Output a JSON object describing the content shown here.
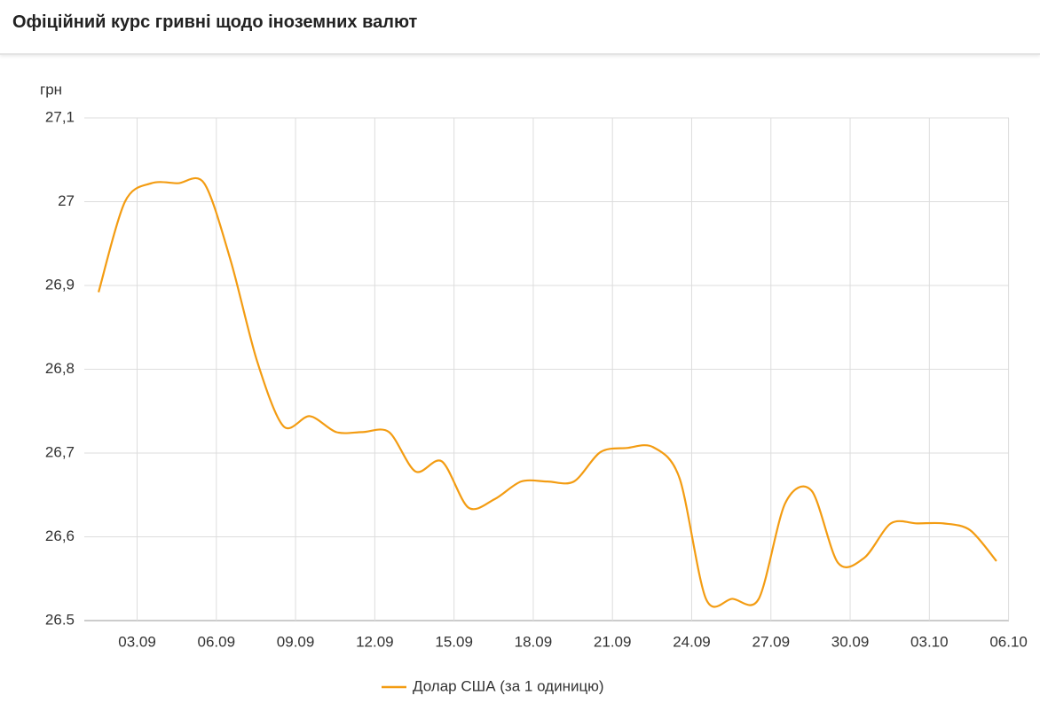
{
  "header": {
    "title": "Офіційний курс гривні щодо іноземних валют"
  },
  "chart_data": {
    "type": "line",
    "y_label": "грн",
    "xticks": [
      "03.09",
      "06.09",
      "09.09",
      "12.09",
      "15.09",
      "18.09",
      "21.09",
      "24.09",
      "27.09",
      "30.09",
      "03.10",
      "06.10"
    ],
    "series": [
      {
        "name": "Долар США (за 1 одиницю)",
        "color": "#f39c12",
        "values": [
          26.892,
          27.0,
          27.022,
          27.022,
          27.022,
          26.93,
          26.81,
          26.732,
          26.744,
          26.725,
          26.725,
          26.725,
          26.678,
          26.69,
          26.635,
          26.645,
          26.666,
          26.666,
          26.666,
          26.701,
          26.706,
          26.707,
          26.67,
          26.526,
          26.526,
          26.526,
          26.64,
          26.655,
          26.569,
          26.575,
          26.616,
          26.616,
          26.616,
          26.608,
          26.571
        ]
      }
    ],
    "ylim": [
      26.5,
      27.1
    ],
    "yticks": [
      26.5,
      {
        "value": 26.6,
        "label": "26,6"
      },
      {
        "value": 26.7,
        "label": "26,7"
      },
      {
        "value": 26.8,
        "label": "26,8"
      },
      {
        "value": 26.9,
        "label": "26,9"
      },
      27,
      {
        "value": 27.1,
        "label": "27,1"
      }
    ],
    "grid": true
  }
}
